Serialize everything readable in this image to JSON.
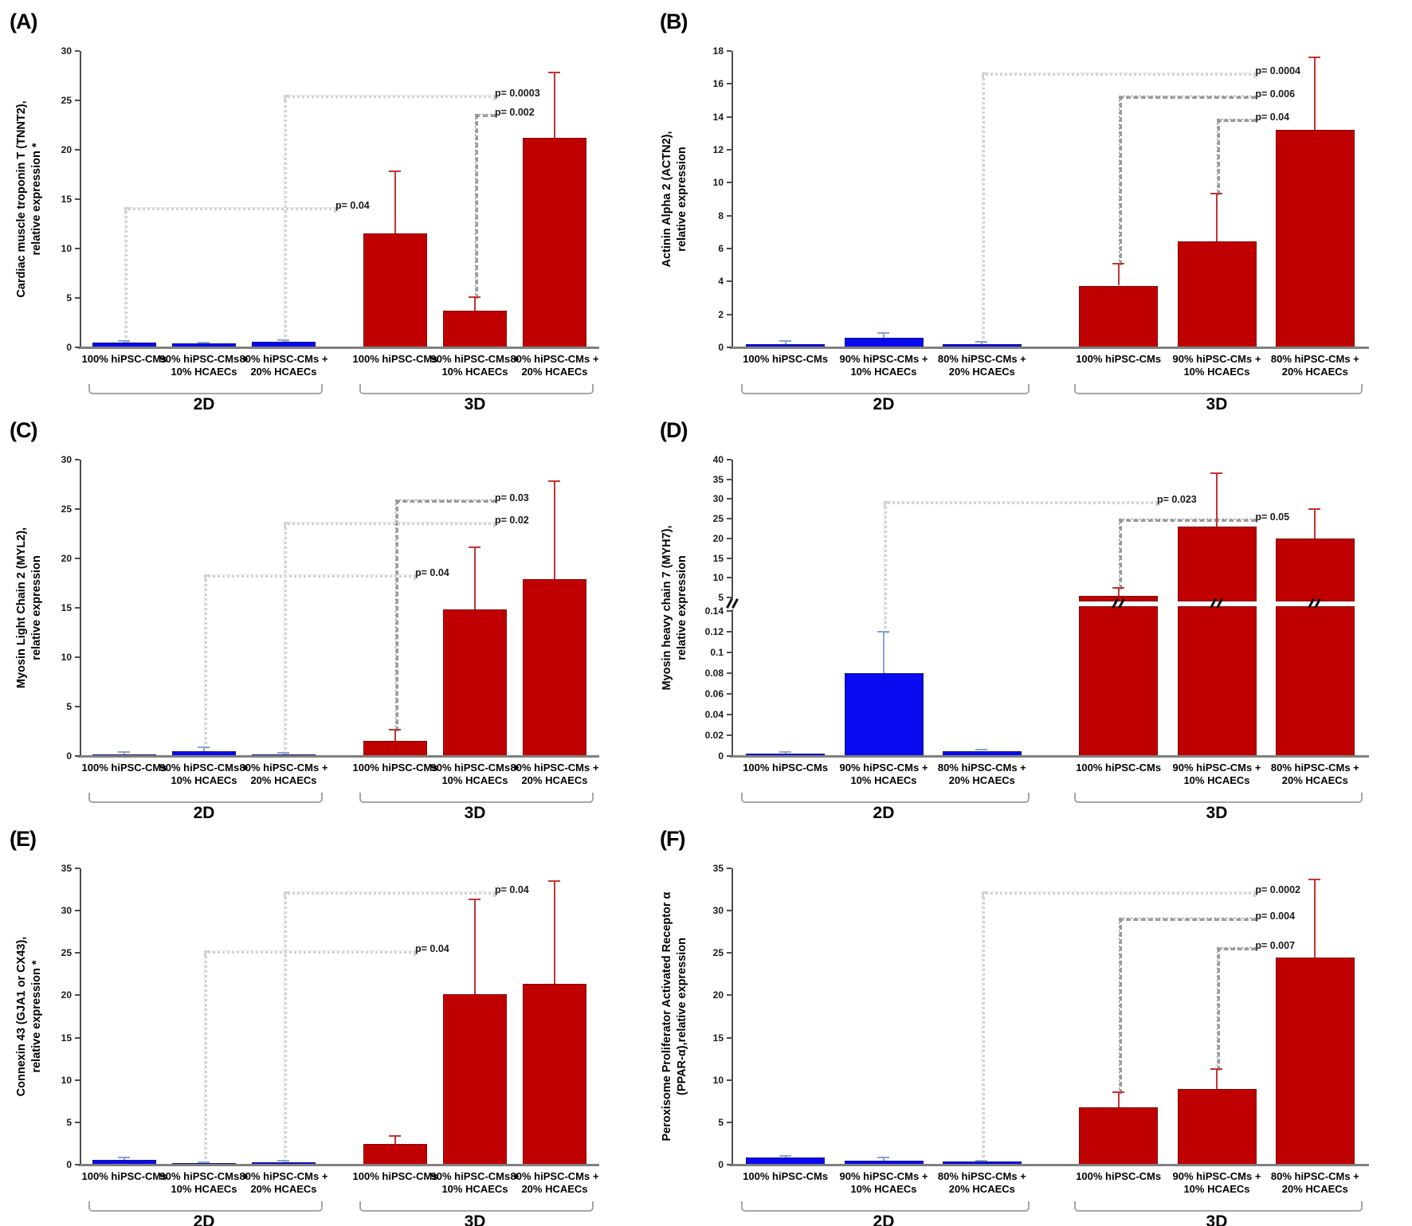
{
  "figure": {
    "background": "#ffffff"
  },
  "colors": {
    "blue_bar": "#0a0af0",
    "blue_border": "#17177d",
    "blue_whisker": "#8aa2d4",
    "red_bar": "#c00000",
    "red_border": "#7d0a0a",
    "red_whisker": "#c43434",
    "bracket": "#a6a6a6",
    "dot_line": "#d2d2d2",
    "dashdot_line": "#9a9a9a",
    "axis": "#4d4d4d"
  },
  "categories": [
    "100% hiPSC-CMs",
    "90% hiPSC-CMs +\n10% HCAECs",
    "80% hiPSC-CMs +\n20% HCAECs"
  ],
  "groups": [
    "2D",
    "3D"
  ],
  "chart_data": [
    {
      "panel_key": "A",
      "panel_label": "(A)",
      "type": "bar",
      "ylabel_lines": [
        "Cardiac muscle troponin T (TNNT2),",
        "relative expression *"
      ],
      "ylim": [
        0,
        30
      ],
      "ytick_step": 5,
      "series": [
        {
          "name": "2D",
          "color": "blue",
          "values": [
            0.5,
            0.4,
            0.55
          ],
          "error_tops": [
            0.65,
            0.5,
            0.75
          ]
        },
        {
          "name": "3D",
          "color": "red",
          "values": [
            11.5,
            3.7,
            21.2
          ],
          "error_tops": [
            17.8,
            5.1,
            27.8
          ]
        }
      ],
      "annotations": [
        {
          "label": "p= 0.04",
          "from_bar": 0,
          "to_bar": 3,
          "y": 14.2,
          "style": "dot"
        },
        {
          "label": "p= 0.0003",
          "from_bar": 2,
          "to_bar": 5,
          "y": 25.6,
          "style": "dot"
        },
        {
          "label": "p= 0.002",
          "from_bar": 4,
          "to_bar": 5,
          "y": 23.6,
          "style": "dashdot"
        }
      ]
    },
    {
      "panel_key": "B",
      "panel_label": "(B)",
      "type": "bar",
      "ylabel_lines": [
        "Actinin Alpha 2 (ACTN2),",
        "relative expression"
      ],
      "ylim": [
        0,
        18
      ],
      "ytick_step": 2,
      "series": [
        {
          "name": "2D",
          "color": "blue",
          "values": [
            0.2,
            0.6,
            0.2
          ],
          "error_tops": [
            0.4,
            0.85,
            0.35
          ]
        },
        {
          "name": "3D",
          "color": "red",
          "values": [
            3.75,
            6.45,
            13.2
          ],
          "error_tops": [
            5.1,
            9.35,
            17.6
          ]
        }
      ],
      "annotations": [
        {
          "label": "p= 0.0004",
          "from_bar": 2,
          "to_bar": 5,
          "y": 16.7,
          "style": "dot"
        },
        {
          "label": "p= 0.006",
          "from_bar": 3,
          "to_bar": 5,
          "y": 15.3,
          "style": "dashdot"
        },
        {
          "label": "p= 0.04",
          "from_bar": 4,
          "to_bar": 5,
          "y": 13.9,
          "style": "dashdot"
        }
      ]
    },
    {
      "panel_key": "C",
      "panel_label": "(C)",
      "type": "bar",
      "ylabel_lines": [
        "Myosin Light Chain 2 (MYL2),",
        "relative expression"
      ],
      "ylim": [
        0,
        30
      ],
      "ytick_step": 5,
      "series": [
        {
          "name": "2D",
          "color": "blue",
          "values": [
            0.2,
            0.45,
            0.2
          ],
          "error_tops": [
            0.4,
            0.9,
            0.3
          ]
        },
        {
          "name": "3D",
          "color": "red",
          "values": [
            1.5,
            14.8,
            17.9
          ],
          "error_tops": [
            2.7,
            21.1,
            27.8
          ]
        }
      ],
      "annotations": [
        {
          "label": "p= 0.03",
          "from_bar": 3,
          "to_bar": 5,
          "y": 26.0,
          "style": "dashdot"
        },
        {
          "label": "p= 0.02",
          "from_bar": 2,
          "to_bar": 5,
          "y": 23.7,
          "style": "dot"
        },
        {
          "label": "p= 0.04",
          "from_bar": 1,
          "to_bar": 4,
          "y": 18.4,
          "style": "dot"
        }
      ]
    },
    {
      "panel_key": "D",
      "panel_label": "(D)",
      "type": "bar",
      "ylabel_lines": [
        "Myosin heavy chain 7 (MYH7),",
        "relative expression"
      ],
      "broken_axis": {
        "lower_max": 0.14,
        "lower_tick_step": 0.02,
        "upper_min": 5,
        "upper_max": 40,
        "upper_tick_step": 5
      },
      "series": [
        {
          "name": "2D",
          "color": "blue",
          "values": [
            0.002,
            0.08,
            0.005
          ],
          "error_tops": [
            0.004,
            0.12,
            0.006
          ]
        },
        {
          "name": "3D",
          "color": "red",
          "values": [
            5.4,
            23.0,
            20.0
          ],
          "error_tops": [
            7.5,
            36.5,
            27.5
          ]
        }
      ],
      "annotations": [
        {
          "label": "p= 0.023",
          "from_bar": 1,
          "to_bar": 4,
          "y": 29.4,
          "style": "dot"
        },
        {
          "label": "p= 0.05",
          "from_bar": 3,
          "to_bar": 5,
          "y": 25.0,
          "style": "dashdot"
        }
      ]
    },
    {
      "panel_key": "E",
      "panel_label": "(E)",
      "type": "bar",
      "ylabel_lines": [
        "Connexin 43 (GJA1 or CX43),",
        "relative expression *"
      ],
      "ylim": [
        0,
        35
      ],
      "ytick_step": 5,
      "series": [
        {
          "name": "2D",
          "color": "blue",
          "values": [
            0.55,
            0.15,
            0.3
          ],
          "error_tops": [
            0.85,
            0.3,
            0.5
          ]
        },
        {
          "name": "3D",
          "color": "red",
          "values": [
            2.4,
            20.1,
            21.4
          ],
          "error_tops": [
            3.4,
            31.3,
            33.5
          ]
        }
      ],
      "annotations": [
        {
          "label": "p= 0.04",
          "from_bar": 1,
          "to_bar": 4,
          "y": 25.3,
          "style": "dot"
        },
        {
          "label": "p= 0.04",
          "from_bar": 2,
          "to_bar": 5,
          "y": 32.3,
          "style": "dot"
        }
      ]
    },
    {
      "panel_key": "F",
      "panel_label": "(F)",
      "type": "bar",
      "ylabel_lines": [
        "Peroxisome Proliferator Activated Receptor α",
        "(PPAR-α),relative expression"
      ],
      "ylim": [
        0,
        35
      ],
      "ytick_step": 5,
      "series": [
        {
          "name": "2D",
          "color": "blue",
          "values": [
            0.8,
            0.5,
            0.4
          ],
          "error_tops": [
            1.05,
            0.8,
            0.5
          ]
        },
        {
          "name": "3D",
          "color": "red",
          "values": [
            6.8,
            8.9,
            24.5
          ],
          "error_tops": [
            8.6,
            11.3,
            33.7
          ]
        }
      ],
      "annotations": [
        {
          "label": "p= 0.0002",
          "from_bar": 2,
          "to_bar": 5,
          "y": 32.3,
          "style": "dot"
        },
        {
          "label": "p= 0.004",
          "from_bar": 3,
          "to_bar": 5,
          "y": 29.2,
          "style": "dashdot"
        },
        {
          "label": "p= 0.007",
          "from_bar": 4,
          "to_bar": 5,
          "y": 25.7,
          "style": "dashdot"
        }
      ]
    }
  ]
}
